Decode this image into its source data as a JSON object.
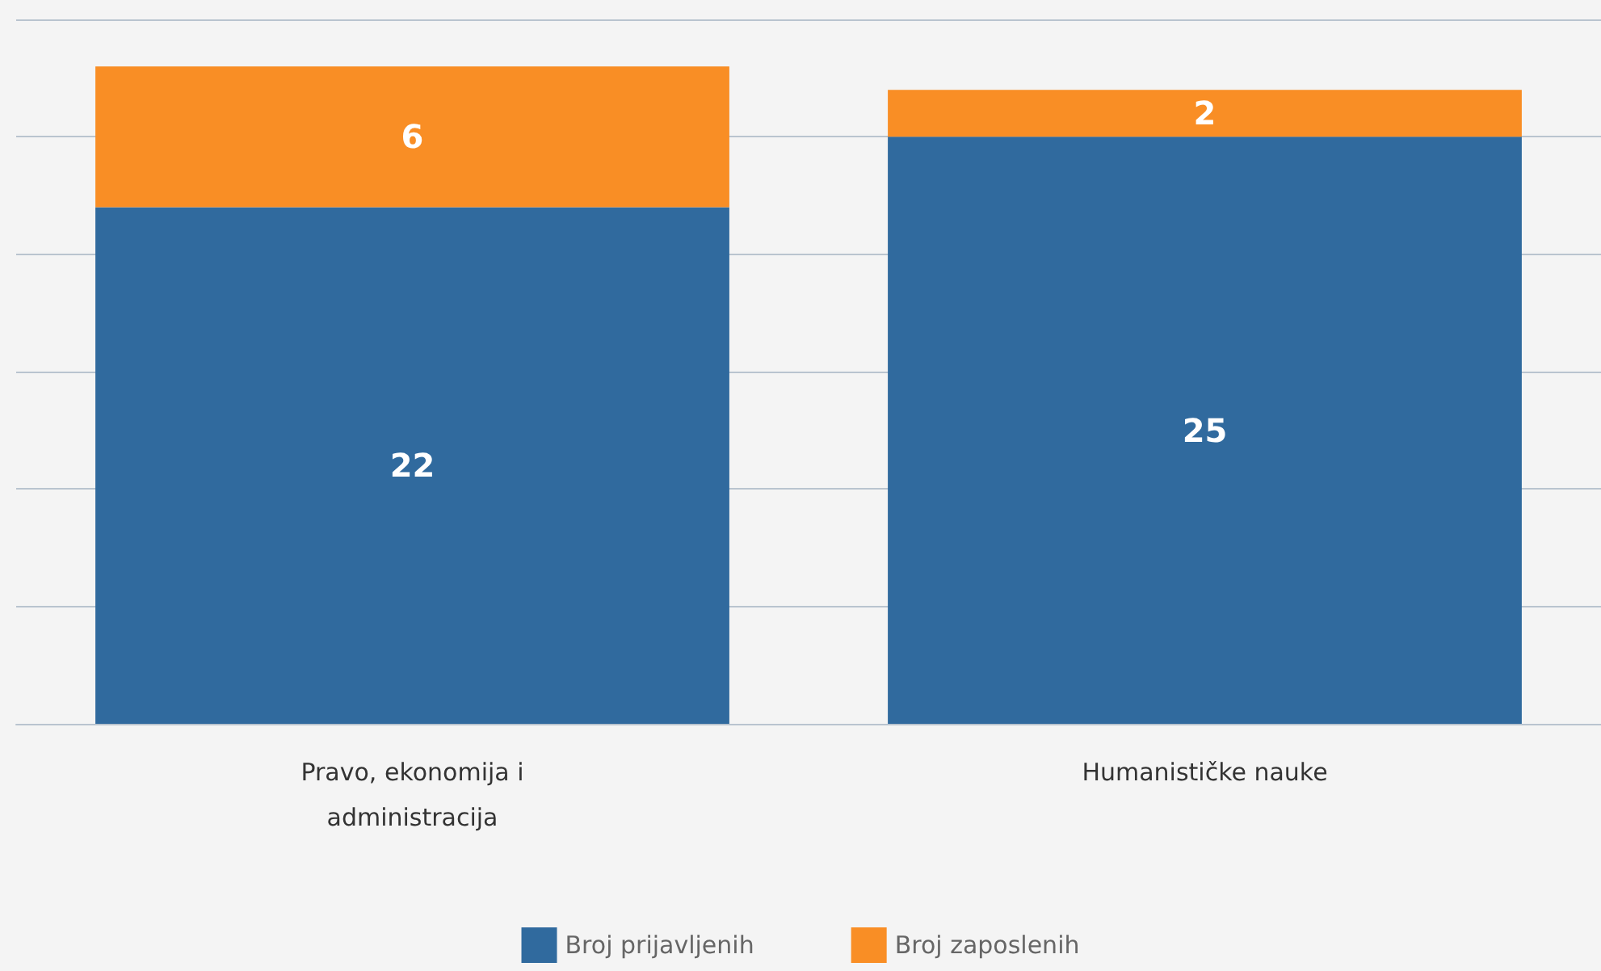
{
  "chart_data": {
    "type": "bar",
    "stacked": true,
    "categories": [
      "Pravo, ekonomija i administracija",
      "Humanističke nauke"
    ],
    "series": [
      {
        "name": "Broj prijavljenih",
        "color": "#306a9e",
        "values": [
          22,
          25
        ]
      },
      {
        "name": "Broj zaposlenih",
        "color": "#f98e25",
        "values": [
          6,
          2
        ]
      }
    ],
    "data_labels": true,
    "grid": "y",
    "legend": "bottom"
  }
}
